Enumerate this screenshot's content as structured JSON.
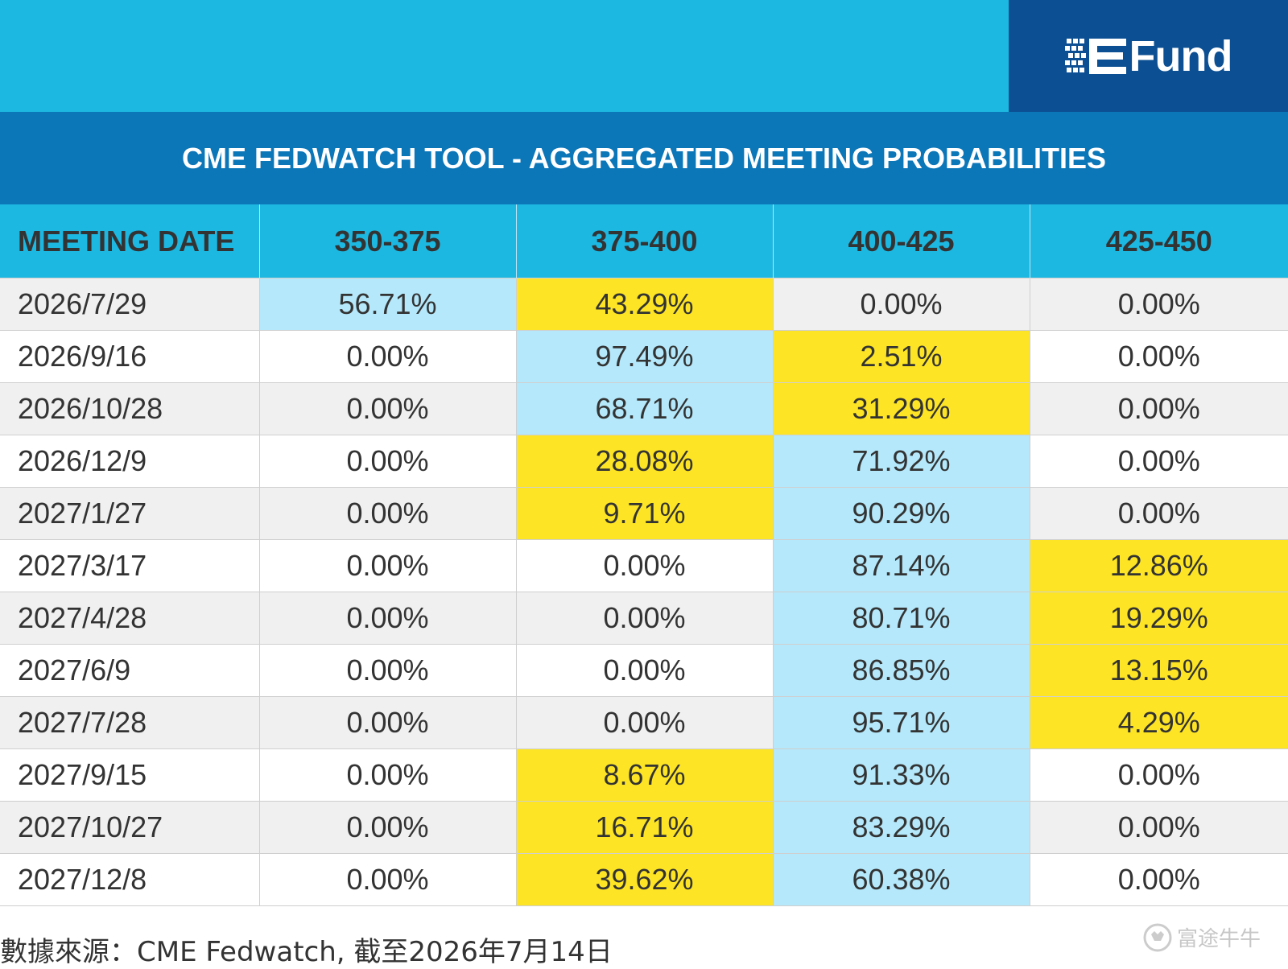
{
  "brand": {
    "logo_text": "Fund",
    "logo_icon": "efund-logo-icon"
  },
  "colors": {
    "header_bg": "#1db8e2",
    "title_bg": "#0b76b8",
    "logo_bg": "#0c4f92",
    "highest": "#b4e8fa",
    "second": "#fde525"
  },
  "chart_data": {
    "type": "table",
    "title": "CME FEDWATCH TOOL - AGGREGATED MEETING PROBABILITIES",
    "columns": [
      "MEETING DATE",
      "350-375",
      "375-400",
      "400-425",
      "425-450"
    ],
    "rows": [
      {
        "date": "2026/7/29",
        "values": [
          "56.71%",
          "43.29%",
          "0.00%",
          "0.00%"
        ],
        "highlight": [
          "top",
          "second",
          "",
          ""
        ]
      },
      {
        "date": "2026/9/16",
        "values": [
          "0.00%",
          "97.49%",
          "2.51%",
          "0.00%"
        ],
        "highlight": [
          "",
          "top",
          "second",
          ""
        ]
      },
      {
        "date": "2026/10/28",
        "values": [
          "0.00%",
          "68.71%",
          "31.29%",
          "0.00%"
        ],
        "highlight": [
          "",
          "top",
          "second",
          ""
        ]
      },
      {
        "date": "2026/12/9",
        "values": [
          "0.00%",
          "28.08%",
          "71.92%",
          "0.00%"
        ],
        "highlight": [
          "",
          "second",
          "top",
          ""
        ]
      },
      {
        "date": "2027/1/27",
        "values": [
          "0.00%",
          "9.71%",
          "90.29%",
          "0.00%"
        ],
        "highlight": [
          "",
          "second",
          "top",
          ""
        ]
      },
      {
        "date": "2027/3/17",
        "values": [
          "0.00%",
          "0.00%",
          "87.14%",
          "12.86%"
        ],
        "highlight": [
          "",
          "",
          "top",
          "second"
        ]
      },
      {
        "date": "2027/4/28",
        "values": [
          "0.00%",
          "0.00%",
          "80.71%",
          "19.29%"
        ],
        "highlight": [
          "",
          "",
          "top",
          "second"
        ]
      },
      {
        "date": "2027/6/9",
        "values": [
          "0.00%",
          "0.00%",
          "86.85%",
          "13.15%"
        ],
        "highlight": [
          "",
          "",
          "top",
          "second"
        ]
      },
      {
        "date": "2027/7/28",
        "values": [
          "0.00%",
          "0.00%",
          "95.71%",
          "4.29%"
        ],
        "highlight": [
          "",
          "",
          "top",
          "second"
        ]
      },
      {
        "date": "2027/9/15",
        "values": [
          "0.00%",
          "8.67%",
          "91.33%",
          "0.00%"
        ],
        "highlight": [
          "",
          "second",
          "top",
          ""
        ]
      },
      {
        "date": "2027/10/27",
        "values": [
          "0.00%",
          "16.71%",
          "83.29%",
          "0.00%"
        ],
        "highlight": [
          "",
          "second",
          "top",
          ""
        ]
      },
      {
        "date": "2027/12/8",
        "values": [
          "0.00%",
          "39.62%",
          "60.38%",
          "0.00%"
        ],
        "highlight": [
          "",
          "second",
          "top",
          ""
        ]
      }
    ]
  },
  "footer": {
    "source": "數據來源：CME Fedwatch, 截至2026年7月14日"
  },
  "watermark": {
    "text": "富途牛牛",
    "icon": "futu-bull-icon"
  }
}
